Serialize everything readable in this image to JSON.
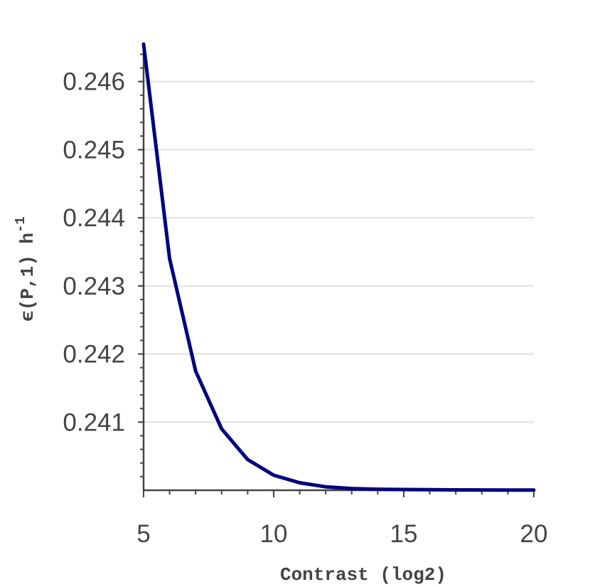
{
  "chart_data": {
    "type": "line",
    "title": "",
    "xlabel": "Contrast (log2)",
    "ylabel": {
      "main": "ϵ(P,1) h",
      "superscript": "-1"
    },
    "xlim": [
      5,
      20
    ],
    "ylim": [
      240.0,
      246.55
    ],
    "x_ticks": [
      5,
      10,
      15,
      20
    ],
    "x_tick_labels": [
      "5",
      "10",
      "15",
      "20"
    ],
    "y_ticks": [
      241,
      242,
      243,
      244,
      245,
      246
    ],
    "y_tick_labels": [
      "0.241",
      "0.242",
      "0.243",
      "0.244",
      "0.245",
      "0.246"
    ],
    "grid": "horizontal",
    "legend": "none",
    "series": [
      {
        "color": "#000080",
        "x": [
          5,
          6,
          7,
          8,
          9,
          10,
          11,
          12,
          13,
          14,
          15,
          16,
          17,
          18,
          19,
          20
        ],
        "y": [
          246.55,
          243.4,
          241.75,
          240.9,
          240.45,
          240.22,
          240.11,
          240.05,
          240.025,
          240.015,
          240.01,
          240.007,
          240.005,
          240.004,
          240.003,
          240.002
        ]
      }
    ]
  }
}
